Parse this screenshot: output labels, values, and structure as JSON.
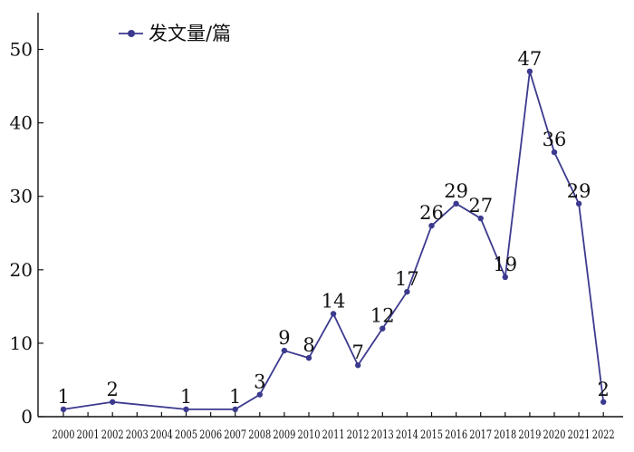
{
  "chart_data": {
    "type": "line",
    "title": "",
    "xlabel": "",
    "ylabel": "",
    "ylim": [
      0,
      55
    ],
    "yticks": [
      0,
      10,
      20,
      30,
      40,
      50
    ],
    "grid": false,
    "legend_position": "top-left",
    "color": "#3c3a8e",
    "categories": [
      "2000",
      "2001",
      "2002",
      "2003",
      "2004",
      "2005",
      "2006",
      "2007",
      "2008",
      "2009",
      "2010",
      "2011",
      "2012",
      "2013",
      "2014",
      "2015",
      "2016",
      "2017",
      "2018",
      "2019",
      "2020",
      "2021",
      "2022"
    ],
    "series": [
      {
        "name": "发文量/篇",
        "points": [
          {
            "x": "2000",
            "y": 1
          },
          {
            "x": "2002",
            "y": 2
          },
          {
            "x": "2005",
            "y": 1
          },
          {
            "x": "2007",
            "y": 1
          },
          {
            "x": "2008",
            "y": 3
          },
          {
            "x": "2009",
            "y": 9
          },
          {
            "x": "2010",
            "y": 8
          },
          {
            "x": "2011",
            "y": 14
          },
          {
            "x": "2012",
            "y": 7
          },
          {
            "x": "2013",
            "y": 12
          },
          {
            "x": "2014",
            "y": 17
          },
          {
            "x": "2015",
            "y": 26
          },
          {
            "x": "2016",
            "y": 29
          },
          {
            "x": "2017",
            "y": 27
          },
          {
            "x": "2018",
            "y": 19
          },
          {
            "x": "2019",
            "y": 47
          },
          {
            "x": "2020",
            "y": 36
          },
          {
            "x": "2021",
            "y": 29
          },
          {
            "x": "2022",
            "y": 2
          }
        ]
      }
    ]
  }
}
